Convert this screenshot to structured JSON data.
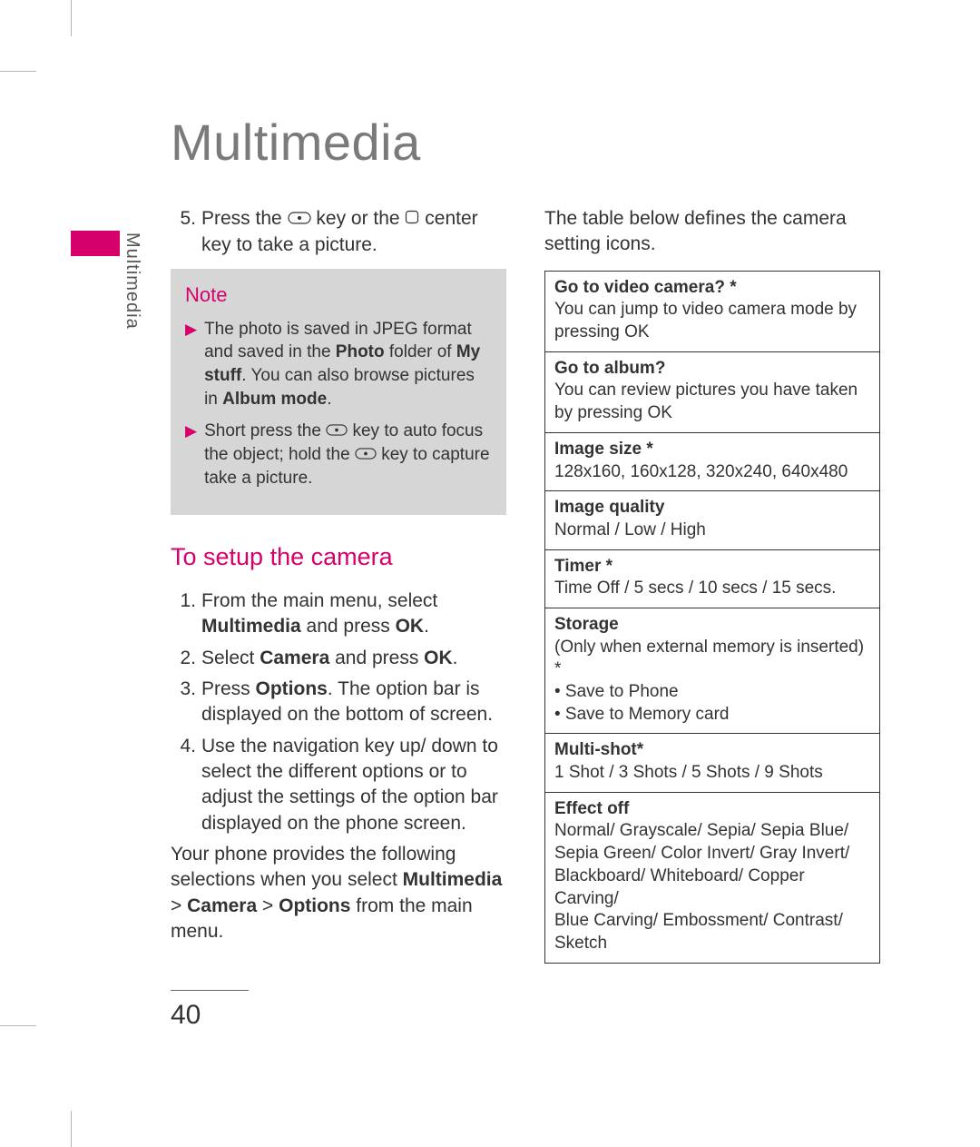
{
  "colors": {
    "accent": "#d6006d",
    "title_gray": "#7a7a7a",
    "note_bg": "#d6d6d6",
    "text": "#333333",
    "border": "#333333",
    "crop": "#b5b5b5"
  },
  "typography": {
    "title_fontsize": 56,
    "body_fontsize": 21,
    "note_fontsize": 19,
    "subhead_fontsize": 27,
    "table_fontsize": 19,
    "pagenum_fontsize": 30
  },
  "page_title": "Multimedia",
  "side_label": "Multimedia",
  "page_number": "40",
  "left_column": {
    "step5": {
      "num": "5.",
      "pre": "Press the ",
      "mid": " key or the ",
      "post": " center key to take a picture."
    },
    "note": {
      "label": "Note",
      "items": [
        {
          "segments": [
            {
              "t": "The photo is saved in JPEG format and saved in the "
            },
            {
              "t": "Photo",
              "bold": true
            },
            {
              "t": " folder of "
            },
            {
              "t": "My stuff",
              "bold": true
            },
            {
              "t": ". You can also browse pictures in "
            },
            {
              "t": "Album mode",
              "bold": true
            },
            {
              "t": "."
            }
          ]
        },
        {
          "segments": [
            {
              "t": "Short press the "
            },
            {
              "icon": "camera-key"
            },
            {
              "t": " key to auto focus the object; hold the "
            },
            {
              "icon": "camera-key"
            },
            {
              "t": " key to capture take a picture."
            }
          ]
        }
      ]
    },
    "subhead": "To setup the camera",
    "steps": [
      {
        "num": "1.",
        "segments": [
          {
            "t": "From the main menu, select "
          },
          {
            "t": "Multimedia",
            "bold": true
          },
          {
            "t": " and press "
          },
          {
            "t": "OK",
            "bold": true
          },
          {
            "t": "."
          }
        ]
      },
      {
        "num": "2.",
        "segments": [
          {
            "t": "Select "
          },
          {
            "t": "Camera",
            "bold": true
          },
          {
            "t": " and press "
          },
          {
            "t": "OK",
            "bold": true
          },
          {
            "t": "."
          }
        ]
      },
      {
        "num": "3.",
        "segments": [
          {
            "t": "Press "
          },
          {
            "t": "Options",
            "bold": true
          },
          {
            "t": ". The option bar is displayed on the bottom of screen."
          }
        ]
      },
      {
        "num": "4.",
        "segments": [
          {
            "t": "Use the navigation key up/ down to select the different options or to adjust the settings of the option bar displayed on the phone screen."
          }
        ]
      }
    ],
    "closing": {
      "segments": [
        {
          "t": "Your phone provides the following selections when you select "
        },
        {
          "t": "Multimedia",
          "bold": true
        },
        {
          "t": " > "
        },
        {
          "t": "Camera",
          "bold": true
        },
        {
          "t": " > "
        },
        {
          "t": "Options",
          "bold": true
        },
        {
          "t": " from the main menu."
        }
      ]
    }
  },
  "right_column": {
    "intro": "The table below defines the camera setting icons.",
    "rows": [
      {
        "title": "Go to video camera? *",
        "body": "You can jump to video camera mode by pressing OK"
      },
      {
        "title": "Go to album?",
        "body": "You can review pictures you have taken by pressing OK"
      },
      {
        "title": "Image size *",
        "body": "128x160, 160x128, 320x240, 640x480"
      },
      {
        "title": "Image quality",
        "body": "Normal / Low / High"
      },
      {
        "title": "Timer *",
        "body": "Time Off / 5 secs / 10 secs / 15 secs."
      },
      {
        "title": "Storage",
        "body": "(Only when external memory is inserted) *\n• Save to Phone\n• Save to Memory card"
      },
      {
        "title": "Multi-shot*",
        "body": "1 Shot / 3 Shots / 5 Shots / 9 Shots"
      },
      {
        "title": "Effect off",
        "body": "Normal/ Grayscale/ Sepia/ Sepia Blue/ Sepia Green/ Color Invert/ Gray Invert/ Blackboard/ Whiteboard/ Copper Carving/\nBlue Carving/ Embossment/ Contrast/ Sketch"
      }
    ]
  }
}
